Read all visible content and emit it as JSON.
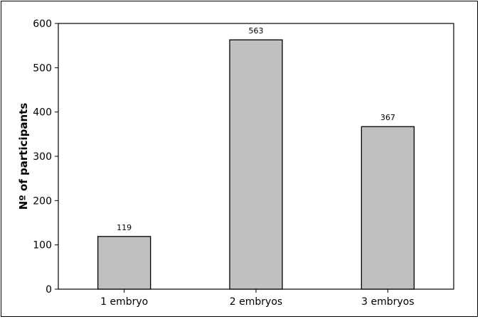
{
  "chart_data": {
    "type": "bar",
    "title": "",
    "xlabel": "",
    "ylabel": "Nº of participants",
    "categories": [
      "1 embryo",
      "2 embryos",
      "3 embryos"
    ],
    "values": [
      119,
      563,
      367
    ],
    "data_labels": [
      "119",
      "563",
      "367"
    ],
    "ylim": [
      0,
      600
    ],
    "yticks": [
      0,
      100,
      200,
      300,
      400,
      500,
      600
    ],
    "grid": false,
    "legend": "none",
    "bar_color": "#c0c0c0",
    "bar_edge_color": "#000000"
  }
}
